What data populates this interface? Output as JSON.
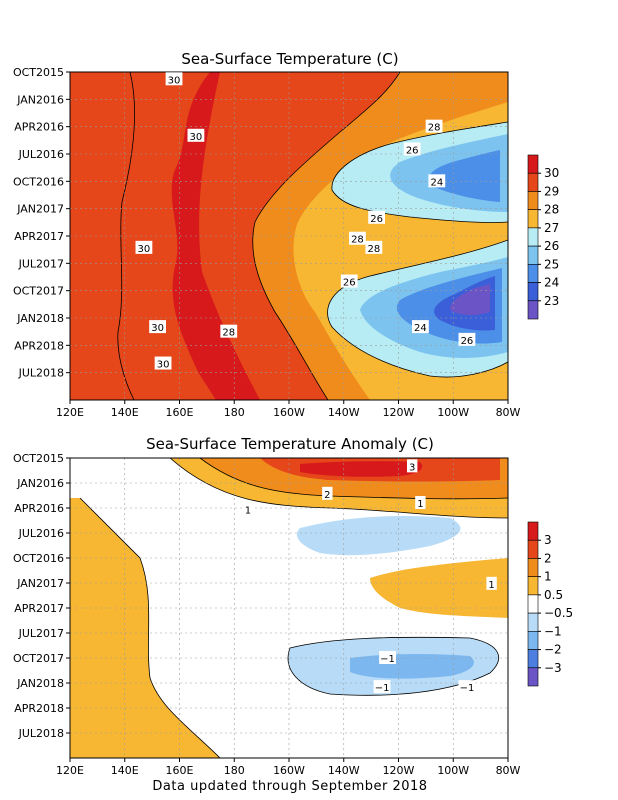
{
  "footer": "Data updated through September 2018",
  "chart_data": [
    {
      "type": "heatmap",
      "title": "Sea-Surface Temperature (C)",
      "x_tick_labels": [
        "120E",
        "140E",
        "160E",
        "180",
        "160W",
        "140W",
        "120W",
        "100W",
        "80W"
      ],
      "x_tick_values": [
        120,
        140,
        160,
        180,
        200,
        220,
        240,
        260,
        280
      ],
      "y_tick_labels": [
        "OCT2015",
        "JAN2016",
        "APR2016",
        "JUL2016",
        "OCT2016",
        "JAN2017",
        "APR2017",
        "JUL2017",
        "OCT2017",
        "JAN2018",
        "APR2018",
        "JUL2018"
      ],
      "y_tick_values": [
        0,
        3,
        6,
        9,
        12,
        15,
        18,
        21,
        24,
        27,
        30,
        33
      ],
      "x_range": [
        120,
        280
      ],
      "y_range": [
        0,
        36
      ],
      "grid": true,
      "colorbar": {
        "labels": [
          "30",
          "29",
          "28",
          "27",
          "26",
          "25",
          "24",
          "23"
        ],
        "colors": [
          "#d7191c",
          "#e5461a",
          "#f08c1c",
          "#f7b733",
          "#b8ecf5",
          "#7cc4ef",
          "#4c8fe8",
          "#3a5fd9",
          "#6b55c6"
        ]
      },
      "contour_labels": [
        {
          "text": "30",
          "x": 158,
          "y": 0.8
        },
        {
          "text": "30",
          "x": 166,
          "y": 7
        },
        {
          "text": "28",
          "x": 253,
          "y": 6
        },
        {
          "text": "26",
          "x": 245,
          "y": 8.5
        },
        {
          "text": "24",
          "x": 254,
          "y": 12
        },
        {
          "text": "26",
          "x": 232,
          "y": 16
        },
        {
          "text": "28",
          "x": 225,
          "y": 18.3
        },
        {
          "text": "28",
          "x": 231,
          "y": 19.3
        },
        {
          "text": "30",
          "x": 147,
          "y": 19.3
        },
        {
          "text": "26",
          "x": 222,
          "y": 23
        },
        {
          "text": "24",
          "x": 248,
          "y": 28
        },
        {
          "text": "28",
          "x": 178,
          "y": 28.5
        },
        {
          "text": "30",
          "x": 152,
          "y": 28
        },
        {
          "text": "26",
          "x": 265,
          "y": 29.4
        },
        {
          "text": "30",
          "x": 154,
          "y": 32
        }
      ]
    },
    {
      "type": "heatmap",
      "title": "Sea-Surface Temperature Anomaly (C)",
      "x_tick_labels": [
        "120E",
        "140E",
        "160E",
        "180",
        "160W",
        "140W",
        "120W",
        "100W",
        "80W"
      ],
      "x_tick_values": [
        120,
        140,
        160,
        180,
        200,
        220,
        240,
        260,
        280
      ],
      "y_tick_labels": [
        "OCT2015",
        "JAN2016",
        "APR2016",
        "JUL2016",
        "OCT2016",
        "JAN2017",
        "APR2017",
        "JUL2017",
        "OCT2017",
        "JAN2018",
        "APR2018",
        "JUL2018"
      ],
      "y_tick_values": [
        0,
        3,
        6,
        9,
        12,
        15,
        18,
        21,
        24,
        27,
        30,
        33
      ],
      "x_range": [
        120,
        280
      ],
      "y_range": [
        0,
        36
      ],
      "grid": true,
      "colorbar": {
        "labels": [
          "3",
          "2",
          "1",
          "0.5",
          "−0.5",
          "−1",
          "−2",
          "−3"
        ],
        "colors": [
          "#d7191c",
          "#e5461a",
          "#f08c1c",
          "#f7b733",
          "#ffffff",
          "#b8dcf7",
          "#7cb8ef",
          "#4c7fe0",
          "#6b55c6"
        ]
      },
      "contour_labels": [
        {
          "text": "3",
          "x": 245,
          "y": 1
        },
        {
          "text": "2",
          "x": 214,
          "y": 4.3
        },
        {
          "text": "1",
          "x": 248,
          "y": 5.4
        },
        {
          "text": "1",
          "x": 185,
          "y": 6.2
        },
        {
          "text": "1",
          "x": 274,
          "y": 15.1
        },
        {
          "text": "−1",
          "x": 236,
          "y": 24
        },
        {
          "text": "−1",
          "x": 234,
          "y": 27.5
        },
        {
          "text": "−1",
          "x": 265,
          "y": 27.5
        }
      ]
    }
  ]
}
